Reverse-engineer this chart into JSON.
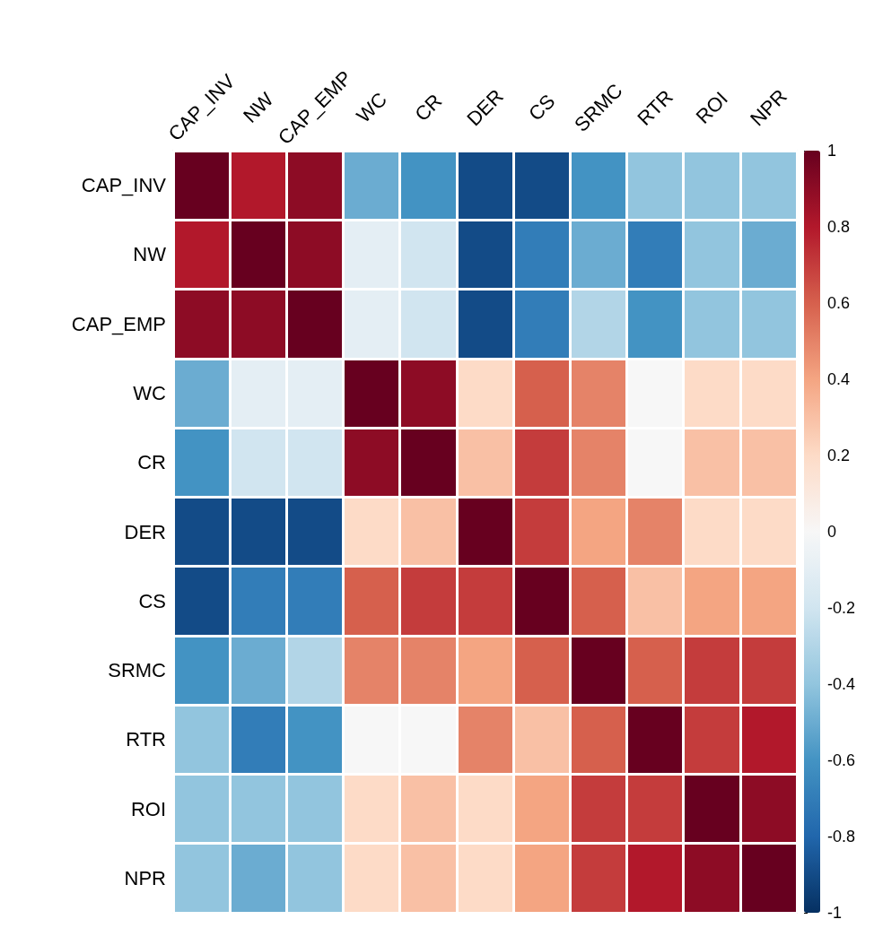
{
  "chart_data": {
    "type": "heatmap",
    "categories": [
      "CAP_INV",
      "NW",
      "CAP_EMP",
      "WC",
      "CR",
      "DER",
      "CS",
      "SRMC",
      "RTR",
      "ROI",
      "NPR"
    ],
    "y_categories": [
      "CAP_INV",
      "NW",
      "CAP_EMP",
      "WC",
      "CR",
      "DER",
      "CS",
      "SRMC",
      "RTR",
      "ROI",
      "NPR"
    ],
    "cells": [
      [
        1,
        0.8,
        0.9,
        -0.5,
        -0.6,
        -0.9,
        -0.9,
        -0.6,
        -0.4,
        -0.4,
        -0.4
      ],
      [
        0.8,
        1,
        0.9,
        -0.1,
        -0.2,
        -0.9,
        -0.7,
        -0.5,
        -0.7,
        -0.4,
        -0.5
      ],
      [
        0.9,
        0.9,
        1,
        -0.1,
        -0.2,
        -0.9,
        -0.7,
        -0.3,
        -0.6,
        -0.4,
        -0.4
      ],
      [
        -0.5,
        -0.1,
        -0.1,
        1,
        0.9,
        0.2,
        0.6,
        0.5,
        0,
        0.2,
        0.2
      ],
      [
        -0.6,
        -0.2,
        -0.2,
        0.9,
        1,
        0.3,
        0.7,
        0.5,
        0,
        0.3,
        0.3
      ],
      [
        -0.9,
        -0.9,
        -0.9,
        0.2,
        0.3,
        1,
        0.7,
        0.4,
        0.5,
        0.2,
        0.2
      ],
      [
        -0.9,
        -0.7,
        -0.7,
        0.6,
        0.7,
        0.7,
        1,
        0.6,
        0.3,
        0.4,
        0.4
      ],
      [
        -0.6,
        -0.5,
        -0.3,
        0.5,
        0.5,
        0.4,
        0.6,
        1,
        0.6,
        0.7,
        0.7
      ],
      [
        -0.4,
        -0.7,
        -0.6,
        0,
        0,
        0.5,
        0.3,
        0.6,
        1,
        0.7,
        0.8
      ],
      [
        -0.4,
        -0.4,
        -0.4,
        0.2,
        0.3,
        0.2,
        0.4,
        0.7,
        0.7,
        1,
        0.9
      ],
      [
        -0.4,
        -0.5,
        -0.4,
        0.2,
        0.3,
        0.2,
        0.4,
        0.7,
        0.8,
        0.9,
        1
      ]
    ],
    "grid": true,
    "clim": [
      -1,
      1
    ],
    "cticks": [
      -1,
      -0.8,
      -0.6,
      -0.4,
      -0.2,
      0,
      0.2,
      0.4,
      0.6,
      0.8,
      1
    ]
  }
}
